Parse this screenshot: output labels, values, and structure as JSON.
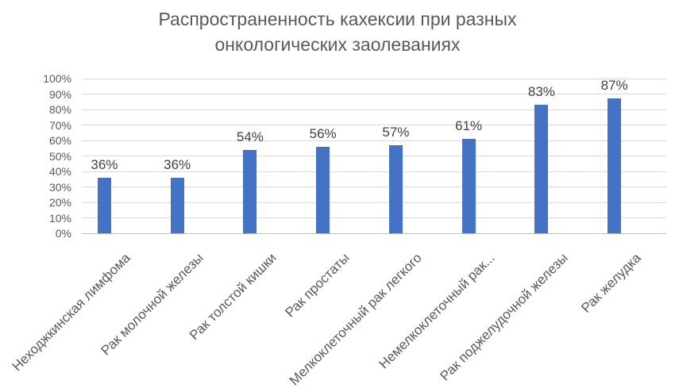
{
  "chart_data": {
    "type": "bar",
    "title": "Распространенность кахексии при разных онкологических заолеваниях",
    "categories": [
      "Неходжкинская лимфома",
      "Рак молочной железы",
      "Рак толстой кишки",
      "Рак простаты",
      "Мелкоклеточный рак легкого",
      "Немелкоклеточный рак...",
      "Рак поджелудочной железы",
      "Рак желудка"
    ],
    "values": [
      36,
      36,
      54,
      56,
      57,
      61,
      83,
      87
    ],
    "value_labels": [
      "36%",
      "36%",
      "54%",
      "56%",
      "57%",
      "61%",
      "83%",
      "87%"
    ],
    "ytick_labels": [
      "0%",
      "10%",
      "20%",
      "30%",
      "40%",
      "50%",
      "60%",
      "70%",
      "80%",
      "90%",
      "100%"
    ],
    "ylim": [
      0,
      100
    ],
    "ytick_step": 10,
    "grid": true,
    "legend": false,
    "xlabel": "",
    "ylabel": "",
    "colors": {
      "bar": "#4472C4",
      "gridline": "#D9D9D9",
      "axis_line": "#BFBFBF",
      "title": "#595959",
      "tick_label": "#595959",
      "data_label": "#404040"
    }
  }
}
